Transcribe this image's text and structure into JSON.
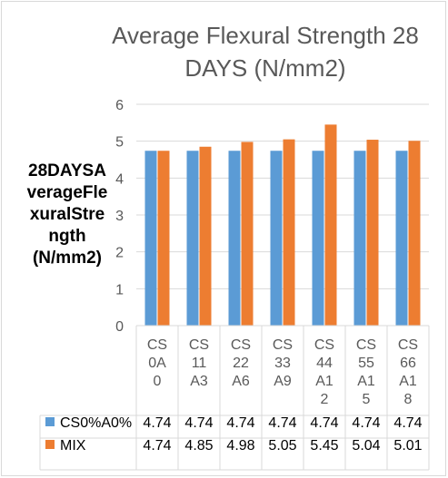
{
  "chart_data": {
    "type": "bar",
    "title_lines": [
      "Average Flexural Strength 28",
      "DAYS (N/mm2)"
    ],
    "ylabel_lines": [
      "28DAYSA",
      "verageFle",
      "xuralStre",
      "ngth",
      "(N/mm2)"
    ],
    "categories": [
      "CS0A0",
      "CS11A3",
      "CS22A6",
      "CS33A9",
      "CS44A12",
      "CS55A15",
      "CS66A18"
    ],
    "category_label_lines": [
      [
        "CS",
        "0A",
        "0"
      ],
      [
        "CS",
        "11",
        "A3"
      ],
      [
        "CS",
        "22",
        "A6"
      ],
      [
        "CS",
        "33",
        "A9"
      ],
      [
        "CS",
        "44",
        "A1",
        "2"
      ],
      [
        "CS",
        "55",
        "A1",
        "5"
      ],
      [
        "CS",
        "66",
        "A1",
        "8"
      ]
    ],
    "series": [
      {
        "name": "CS0%A0%",
        "color": "#5b9bd5",
        "values": [
          4.74,
          4.74,
          4.74,
          4.74,
          4.74,
          4.74,
          4.74
        ],
        "labels": [
          "4.74",
          "4.74",
          "4.74",
          "4.74",
          "4.74",
          "4.74",
          "4.74"
        ]
      },
      {
        "name": "MIX",
        "color": "#ed7d31",
        "values": [
          4.74,
          4.85,
          4.98,
          5.05,
          5.45,
          5.04,
          5.01
        ],
        "labels": [
          "4.74",
          "4.85",
          "4.98",
          "5.05",
          "5.45",
          "5.04",
          "5.01"
        ]
      }
    ],
    "ylim": [
      0,
      6
    ],
    "yticks": [
      "0",
      "1",
      "2",
      "3",
      "4",
      "5",
      "6"
    ],
    "grid": true,
    "data_table": true
  }
}
